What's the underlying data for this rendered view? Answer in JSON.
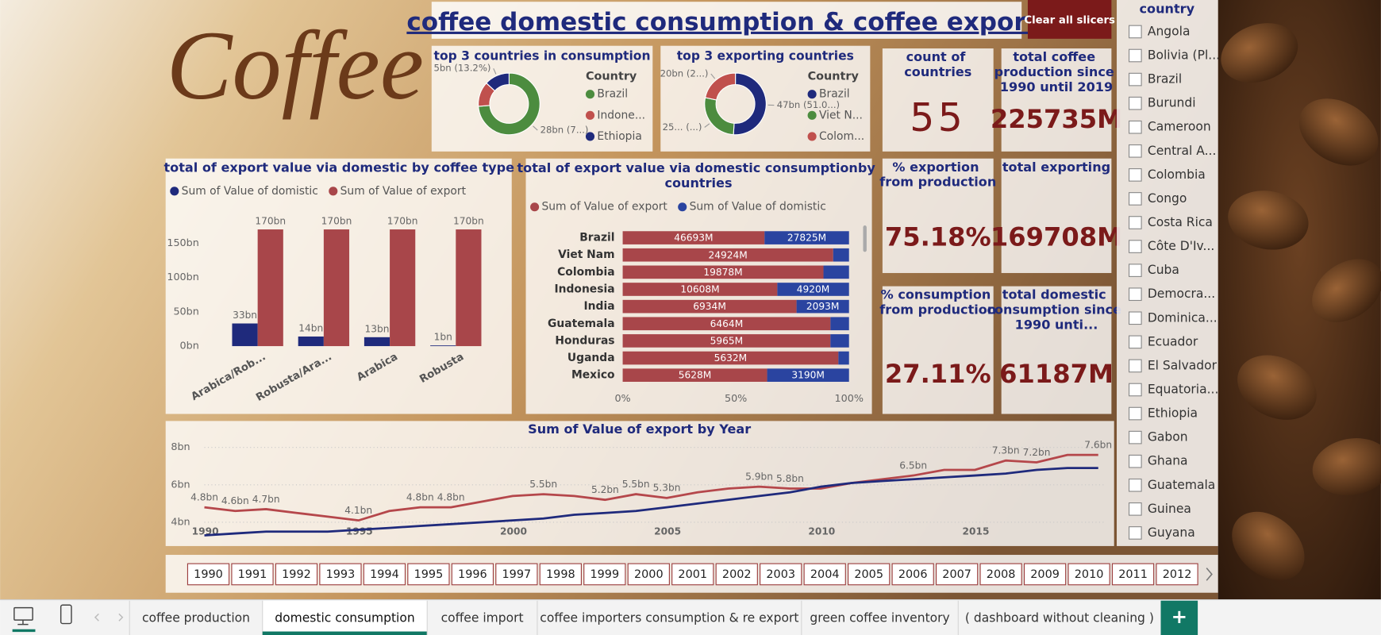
{
  "header": {
    "logo": "Coffee",
    "title": "coffee domestic consumption & coffee export",
    "clear_button": "Clear all slicers"
  },
  "donuts": [
    {
      "type": "donut",
      "title": "top 3 countries in consumption",
      "legend_title": "Country",
      "categories": [
        "Brazil",
        "Indone...",
        "Ethiopia"
      ],
      "colors": [
        "#4c8c3f",
        "#c0504d",
        "#1f2a7c"
      ],
      "values": [
        27.825,
        4.92,
        4.98
      ],
      "value_labels": [
        "28bn (7...)",
        null,
        "5bn (13.2%)"
      ]
    },
    {
      "type": "donut",
      "title": "top 3 exporting countries",
      "legend_title": "Country",
      "categories": [
        "Brazil",
        "Viet N...",
        "Colom..."
      ],
      "colors": [
        "#1f2a7c",
        "#4c8c3f",
        "#c0504d"
      ],
      "values": [
        46.693,
        24.924,
        19.878
      ],
      "value_labels": [
        "47bn (51.0...)",
        "25... (...)",
        "20bn (2...)"
      ]
    }
  ],
  "cards": [
    {
      "title": "count of countries",
      "value": "55"
    },
    {
      "title": "total coffee production since 1990 until 2019",
      "value": "225735M"
    },
    {
      "title": "% exportion from production",
      "value": "75.18%"
    },
    {
      "title": "total exporting",
      "value": "169708M"
    },
    {
      "title": "% consumption from production",
      "value": "27.11%"
    },
    {
      "title": "total domestic consumption since 1990 unti...",
      "value": "61187M"
    }
  ],
  "bar_chart": {
    "type": "bar",
    "title": "total of export value via domestic by coffee type",
    "categories": [
      "Arabica/Rob...",
      "Robusta/Ara...",
      "Arabica",
      "Robusta"
    ],
    "series": [
      {
        "name": "Sum of Value of domistic",
        "color": "#1f2a7c",
        "values": [
          33,
          14,
          13,
          1
        ],
        "value_labels": [
          "33bn",
          "14bn",
          "13bn",
          "1bn"
        ]
      },
      {
        "name": "Sum of Value of export",
        "color": "#a8464a",
        "values": [
          170,
          170,
          170,
          170
        ],
        "value_labels": [
          "170bn",
          "170bn",
          "170bn",
          "170bn"
        ]
      }
    ],
    "ylim": [
      0,
      195
    ],
    "yticks": [
      {
        "value": 0,
        "label": "0bn"
      },
      {
        "value": 50,
        "label": "50bn"
      },
      {
        "value": 100,
        "label": "100bn"
      },
      {
        "value": 150,
        "label": "150bn"
      }
    ]
  },
  "stacked_bar": {
    "type": "stacked_bar_100",
    "title": "total of export value via domestic consumptionby countries",
    "categories": [
      "Brazil",
      "Viet Nam",
      "Colombia",
      "Indonesia",
      "India",
      "Guatemala",
      "Honduras",
      "Uganda",
      "Mexico"
    ],
    "series": [
      {
        "name": "Sum of Value of export",
        "color": "#a8464a",
        "values": [
          46693,
          24924,
          19878,
          10608,
          6934,
          6464,
          5965,
          5632,
          5628
        ],
        "value_labels": [
          "46693M",
          "24924M",
          "19878M",
          "10608M",
          "6934M",
          "6464M",
          "5965M",
          "5632M",
          "5628M"
        ]
      },
      {
        "name": "Sum of Value of domistic",
        "color": "#2a44a0",
        "values": [
          27825,
          1876,
          2530,
          4920,
          2093,
          577,
          533,
          278,
          3190
        ],
        "value_labels": [
          "27825M",
          null,
          null,
          "4920M",
          "2093M",
          null,
          null,
          null,
          "3190M"
        ]
      }
    ],
    "xlim": [
      0,
      100
    ],
    "xticks": [
      {
        "value": 0,
        "label": "0%"
      },
      {
        "value": 50,
        "label": "50%"
      },
      {
        "value": 100,
        "label": "100%"
      }
    ]
  },
  "line_chart": {
    "type": "line",
    "title": "Sum of Value of export by Year",
    "x": [
      1990,
      1991,
      1992,
      1993,
      1994,
      1995,
      1996,
      1997,
      1998,
      1999,
      2000,
      2001,
      2002,
      2003,
      2004,
      2005,
      2006,
      2007,
      2008,
      2009,
      2010,
      2011,
      2012,
      2013,
      2014,
      2015,
      2016,
      2017,
      2018,
      2019
    ],
    "series": [
      {
        "color": "#b5474b",
        "values": [
          4.8,
          4.6,
          4.7,
          4.5,
          4.3,
          4.1,
          4.6,
          4.8,
          4.8,
          5.1,
          5.4,
          5.5,
          5.4,
          5.2,
          5.5,
          5.3,
          5.6,
          5.8,
          5.9,
          5.8,
          5.8,
          6.1,
          6.3,
          6.5,
          6.8,
          6.8,
          7.3,
          7.2,
          7.6,
          7.6
        ],
        "value_labels": [
          "4.8bn",
          "4.6bn",
          "4.7bn",
          null,
          null,
          "4.1bn",
          null,
          "4.8bn",
          "4.8bn",
          null,
          null,
          "5.5bn",
          null,
          "5.2bn",
          "5.5bn",
          "5.3bn",
          null,
          null,
          "5.9bn",
          "5.8bn",
          null,
          null,
          null,
          "6.5bn",
          null,
          null,
          "7.3bn",
          "7.2bn",
          null,
          "7.6bn"
        ]
      },
      {
        "color": "#1f2a7c",
        "values": [
          3.3,
          3.4,
          3.5,
          3.5,
          3.5,
          3.6,
          3.7,
          3.8,
          3.9,
          4.0,
          4.1,
          4.2,
          4.4,
          4.5,
          4.6,
          4.8,
          5.0,
          5.2,
          5.4,
          5.6,
          5.9,
          6.1,
          6.2,
          6.3,
          6.4,
          6.5,
          6.6,
          6.8,
          6.9,
          6.9
        ]
      }
    ],
    "xlim": [
      1990,
      2019
    ],
    "xticks": [
      1990,
      1995,
      2000,
      2005,
      2010,
      2015
    ],
    "ylim": [
      3.2,
      8.3
    ],
    "yticks": [
      {
        "value": 4,
        "label": "4bn"
      },
      {
        "value": 6,
        "label": "6bn"
      },
      {
        "value": 8,
        "label": "8bn"
      }
    ],
    "grid": true
  },
  "country_slicer": {
    "title": "country",
    "items": [
      "Angola",
      "Bolivia (Pl...",
      "Brazil",
      "Burundi",
      "Cameroon",
      "Central A...",
      "Colombia",
      "Congo",
      "Costa Rica",
      "Côte D'Iv...",
      "Cuba",
      "Democra...",
      "Dominica...",
      "Ecuador",
      "El Salvador",
      "Equatoria...",
      "Ethiopia",
      "Gabon",
      "Ghana",
      "Guatemala",
      "Guinea",
      "Guyana"
    ]
  },
  "year_slicer": {
    "items": [
      "1990",
      "1991",
      "1992",
      "1993",
      "1994",
      "1995",
      "1996",
      "1997",
      "1998",
      "1999",
      "2000",
      "2001",
      "2002",
      "2003",
      "2004",
      "2005",
      "2006",
      "2007",
      "2008",
      "2009",
      "2010",
      "2011",
      "2012"
    ]
  },
  "tabs": {
    "items": [
      "coffee production",
      "domestic consumption",
      "coffee import",
      "coffee importers consumption & re export",
      "green coffee inventory",
      "( dashboard without cleaning )"
    ],
    "active": 1,
    "add_button": "+"
  }
}
